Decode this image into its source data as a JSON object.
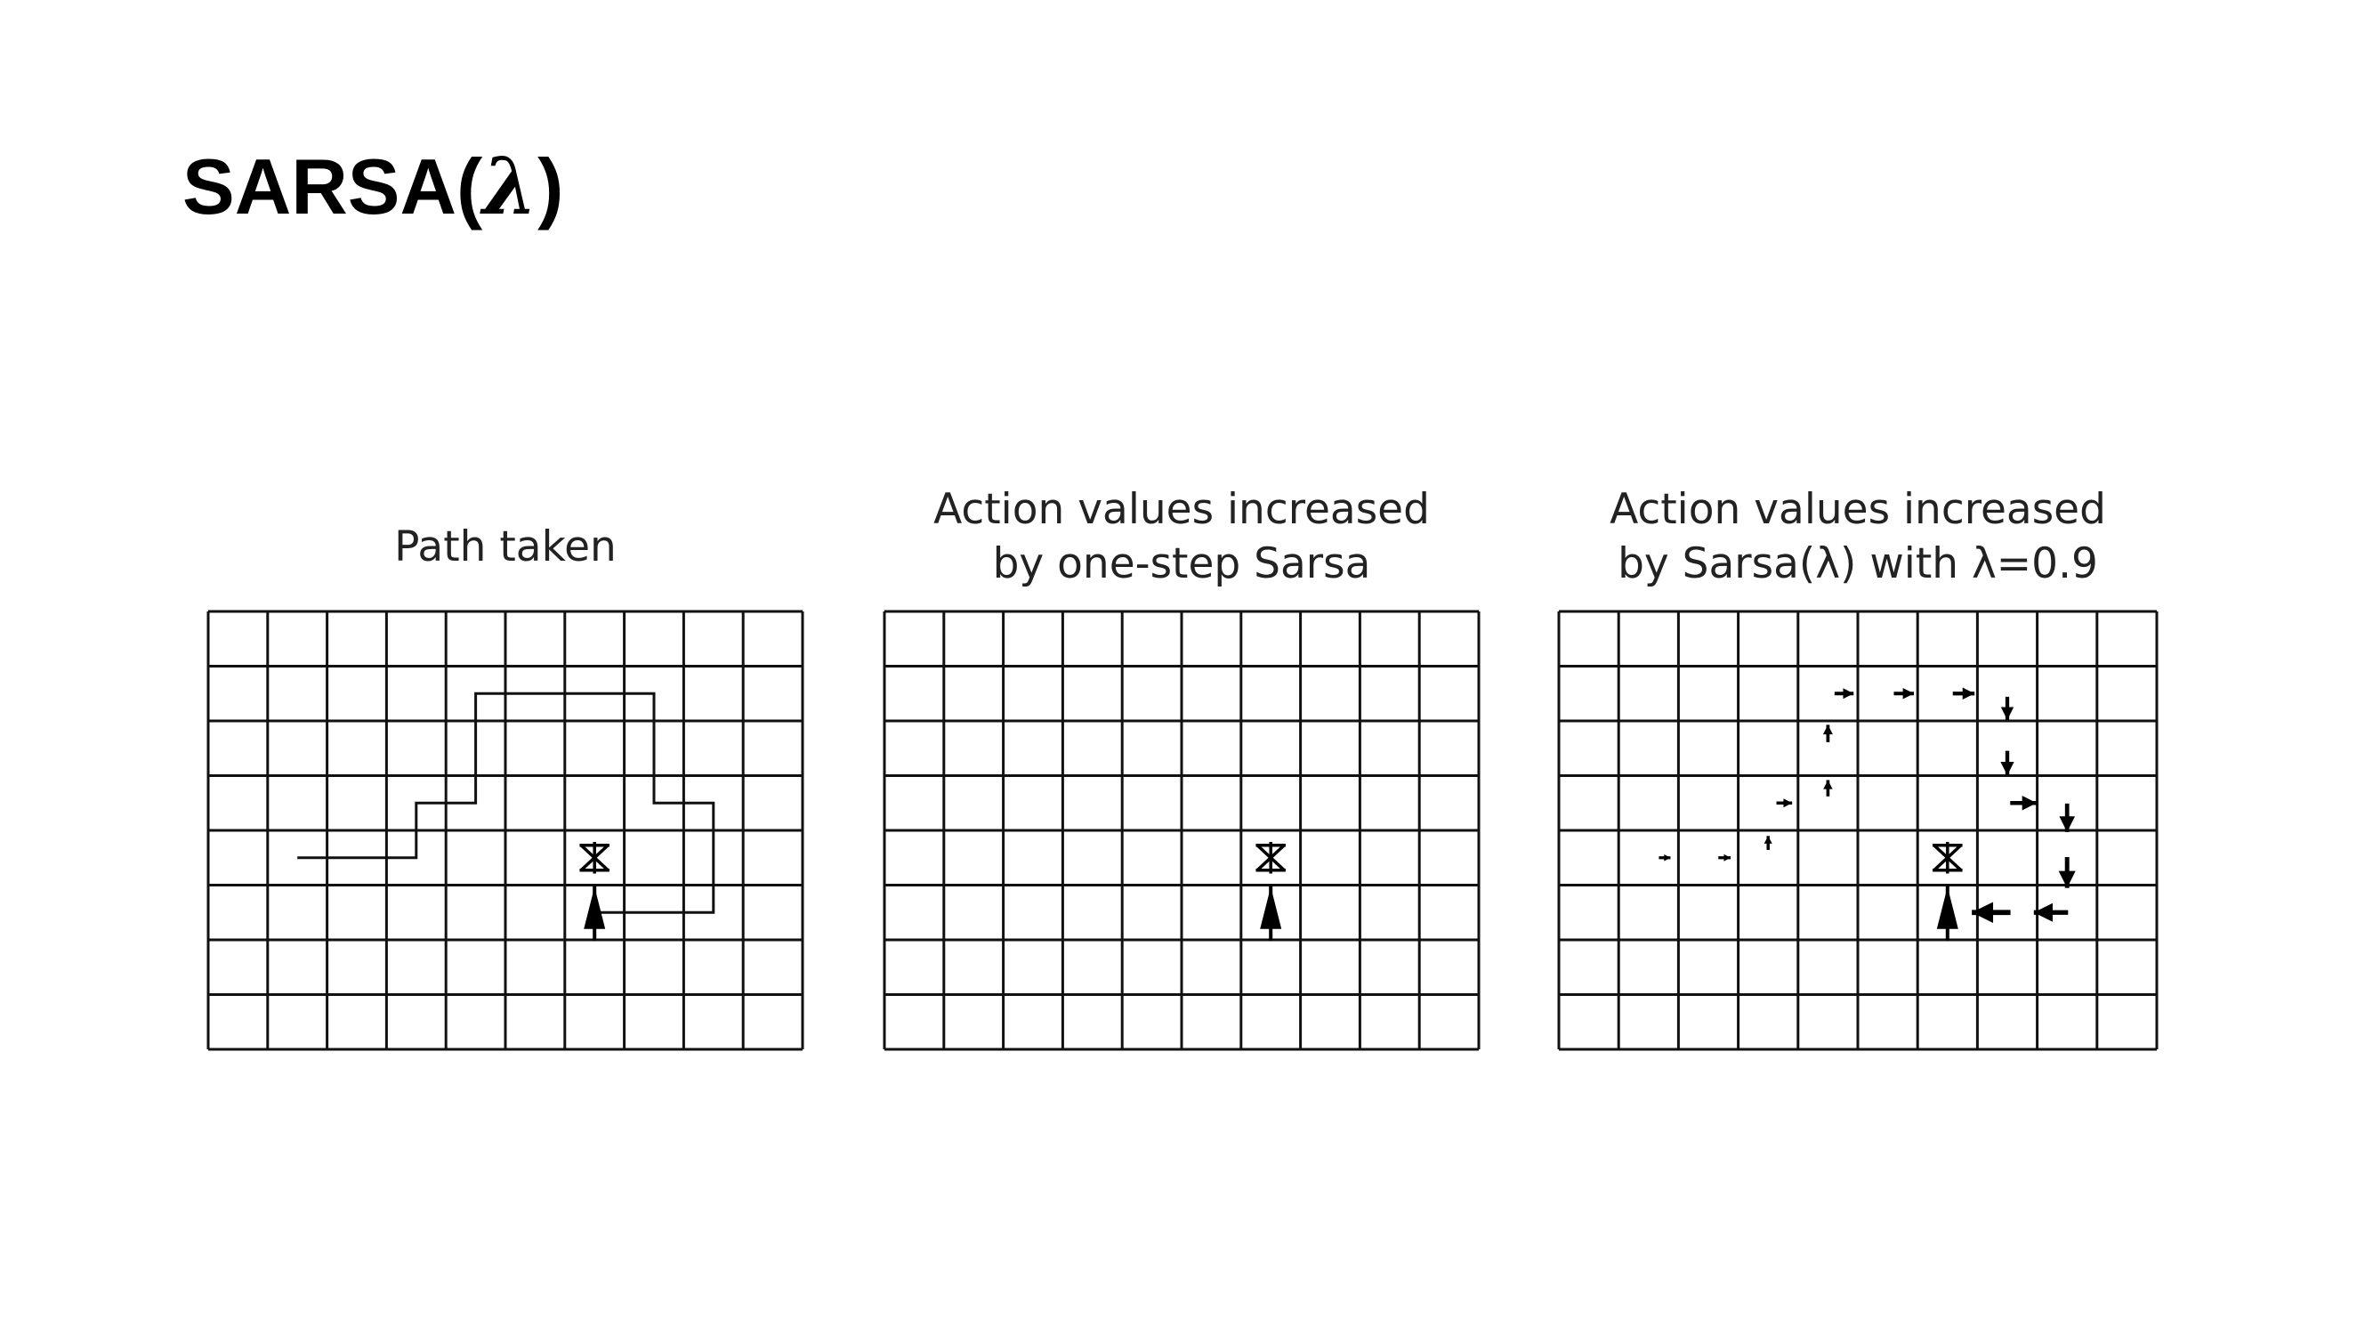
{
  "slide": {
    "title_prefix": "SARSA(",
    "title_symbol": "λ",
    "title_suffix": ")"
  },
  "panels": [
    {
      "id": "path",
      "title_lines": [
        "Path taken"
      ],
      "grid": {
        "cols": 10,
        "rows": 8
      },
      "goal_cell": [
        6,
        4
      ],
      "agent_cell": [
        6,
        5
      ],
      "path_vertices": [
        [
          1.5,
          4.5
        ],
        [
          3.5,
          4.5
        ],
        [
          3.5,
          3.5
        ],
        [
          4.5,
          3.5
        ],
        [
          4.5,
          1.5
        ],
        [
          7.5,
          1.5
        ],
        [
          7.5,
          3.5
        ],
        [
          8.5,
          3.5
        ],
        [
          8.5,
          5.5
        ],
        [
          6.5,
          5.5
        ]
      ],
      "increased_actions": []
    },
    {
      "id": "one-step",
      "title_lines": [
        "Action values increased",
        "by one-step Sarsa"
      ],
      "grid": {
        "cols": 10,
        "rows": 8
      },
      "goal_cell": [
        6,
        4
      ],
      "agent_cell": [
        6,
        5
      ],
      "path_vertices": [],
      "increased_actions": []
    },
    {
      "id": "sarsa-lambda",
      "title_lines": [
        "Action values increased",
        "by Sarsa(λ) with λ=0.9"
      ],
      "grid": {
        "cols": 10,
        "rows": 8
      },
      "goal_cell": [
        6,
        4
      ],
      "agent_cell": [
        6,
        5
      ],
      "path_vertices": [],
      "increased_actions": [
        {
          "cell": [
            1,
            4
          ],
          "dir": "right",
          "strength": 0.08
        },
        {
          "cell": [
            2,
            4
          ],
          "dir": "right",
          "strength": 0.1
        },
        {
          "cell": [
            3,
            4
          ],
          "dir": "up",
          "strength": 0.15
        },
        {
          "cell": [
            3,
            3
          ],
          "dir": "right",
          "strength": 0.2
        },
        {
          "cell": [
            4,
            3
          ],
          "dir": "up",
          "strength": 0.22
        },
        {
          "cell": [
            4,
            2
          ],
          "dir": "up",
          "strength": 0.25
        },
        {
          "cell": [
            4,
            1
          ],
          "dir": "right",
          "strength": 0.3
        },
        {
          "cell": [
            5,
            1
          ],
          "dir": "right",
          "strength": 0.33
        },
        {
          "cell": [
            6,
            1
          ],
          "dir": "right",
          "strength": 0.38
        },
        {
          "cell": [
            7,
            1
          ],
          "dir": "down",
          "strength": 0.42
        },
        {
          "cell": [
            7,
            2
          ],
          "dir": "down",
          "strength": 0.46
        },
        {
          "cell": [
            7,
            3
          ],
          "dir": "right",
          "strength": 0.52
        },
        {
          "cell": [
            8,
            3
          ],
          "dir": "down",
          "strength": 0.58
        },
        {
          "cell": [
            8,
            4
          ],
          "dir": "down",
          "strength": 0.65
        },
        {
          "cell": [
            8,
            5
          ],
          "dir": "left",
          "strength": 0.75
        },
        {
          "cell": [
            7,
            5
          ],
          "dir": "left",
          "strength": 0.88
        }
      ]
    }
  ]
}
